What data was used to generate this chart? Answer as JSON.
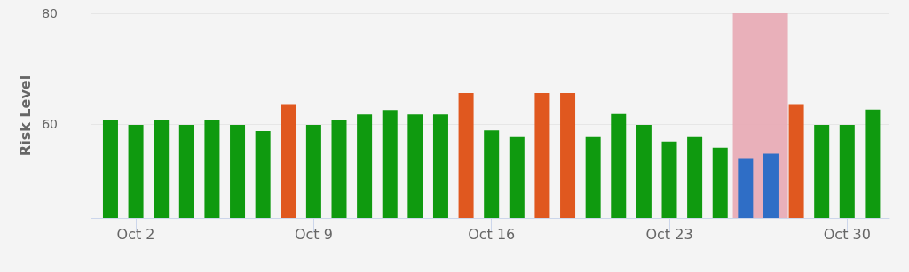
{
  "chart_data": {
    "type": "bar",
    "ylabel": "Risk Level",
    "x": [
      "--10-01",
      "--10-02",
      "--10-03",
      "--10-04",
      "--10-05",
      "--10-06",
      "--10-07",
      "--10-08",
      "--10-09",
      "--10-10",
      "--10-11",
      "--10-12",
      "--10-13",
      "--10-14",
      "--10-15",
      "--10-16",
      "--10-17",
      "--10-18",
      "--10-19",
      "--10-20",
      "--10-21",
      "--10-22",
      "--10-23",
      "--10-24",
      "--10-25",
      "--10-26",
      "--10-27",
      "--10-28",
      "--10-29",
      "--10-30",
      "--10-31"
    ],
    "values": [
      60.6,
      59.8,
      60.6,
      59.8,
      60.6,
      59.8,
      58.7,
      63.6,
      59.8,
      60.6,
      61.7,
      62.5,
      61.7,
      61.7,
      65.6,
      58.8,
      57.6,
      65.6,
      65.6,
      57.6,
      61.8,
      59.8,
      56.8,
      57.6,
      55.7,
      53.8,
      54.6,
      63.6,
      59.8,
      59.8,
      62.6
    ],
    "colors": [
      "#0f9a0f",
      "#0f9a0f",
      "#0f9a0f",
      "#0f9a0f",
      "#0f9a0f",
      "#0f9a0f",
      "#0f9a0f",
      "#e0581f",
      "#0f9a0f",
      "#0f9a0f",
      "#0f9a0f",
      "#0f9a0f",
      "#0f9a0f",
      "#0f9a0f",
      "#e0581f",
      "#0f9a0f",
      "#0f9a0f",
      "#e0581f",
      "#e0581f",
      "#0f9a0f",
      "#0f9a0f",
      "#0f9a0f",
      "#0f9a0f",
      "#0f9a0f",
      "#0f9a0f",
      "#2f6ec6",
      "#2f6ec6",
      "#e0581f",
      "#0f9a0f",
      "#0f9a0f",
      "#0f9a0f"
    ],
    "xlim": [
      "--09-30T06:00",
      "--10-31T16:00"
    ],
    "xticks": [
      {
        "value": "--10-02",
        "label": "Oct 2"
      },
      {
        "value": "--10-09",
        "label": "Oct 9"
      },
      {
        "value": "--10-16",
        "label": "Oct 16"
      },
      {
        "value": "--10-23",
        "label": "Oct 23"
      },
      {
        "value": "--10-30",
        "label": "Oct 30"
      }
    ],
    "ylim": [
      43,
      80
    ],
    "yticks": [
      60,
      80
    ],
    "bands": [
      {
        "axis": "x",
        "from": "--10-25T12:00",
        "to": "--10-27T16:00",
        "color": "#e8a9b4"
      }
    ],
    "grid": "y"
  }
}
